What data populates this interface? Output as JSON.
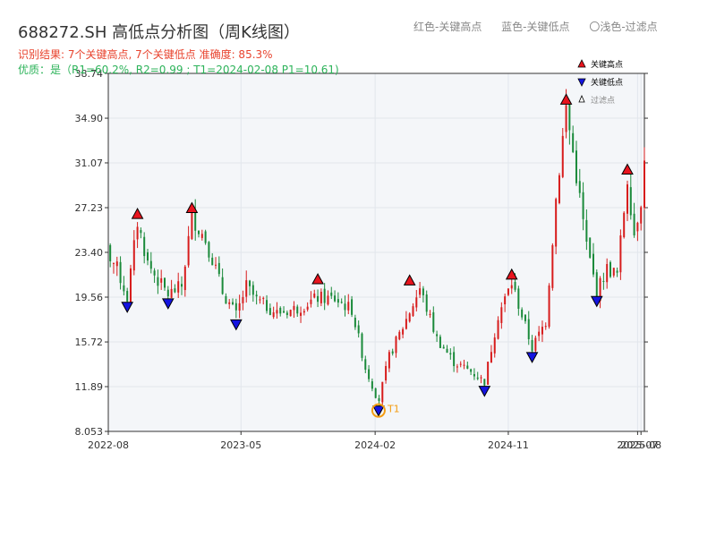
{
  "header": {
    "title": "688272.SH 高低点分析图（周K线图）",
    "result_line": "识别结果: 7个关键高点, 7个关键低点  准确度: 85.3%",
    "quality_line": "优质：是（R1=60.2%, R2=0.99 ; T1=2024-02-08 P1=10.61)"
  },
  "top_legend": {
    "red": "红色-关键高点",
    "blue": "蓝色-关键低点",
    "light": "〇浅色-过滤点"
  },
  "colors": {
    "up": "#d71c1c",
    "down": "#1a8a3a",
    "high_marker": "#e8141e",
    "low_marker": "#1414e0",
    "t1_ring": "#f39c12",
    "plot_bg": "#f4f6f9",
    "grid": "#e2e6ec"
  },
  "chart_data": {
    "type": "candlestick",
    "y_ticks": [
      "8.053",
      "11.89",
      "15.72",
      "19.56",
      "23.40",
      "27.23",
      "31.07",
      "34.90",
      "38.74"
    ],
    "ylim": [
      8.053,
      38.74
    ],
    "x_ticks": [
      "2022-08",
      "2023-05",
      "2024-02",
      "2024-11",
      "2025-07",
      "2025-08"
    ],
    "xlim": [
      "2022-08-01",
      "2025-08-08"
    ],
    "grid": true,
    "legend": {
      "placement": "top-right",
      "items": [
        "关键高点",
        "关键低点",
        "过滤点"
      ]
    },
    "price_path": [
      [
        "2022-07-08",
        29.5
      ],
      [
        "2022-07-22",
        24.0
      ],
      [
        "2022-08-19",
        22.0
      ],
      [
        "2022-09-09",
        19.5
      ],
      [
        "2022-09-30",
        26.0
      ],
      [
        "2022-10-21",
        22.5
      ],
      [
        "2022-11-11",
        21.0
      ],
      [
        "2022-12-02",
        19.8
      ],
      [
        "2022-12-30",
        20.5
      ],
      [
        "2023-01-20",
        26.5
      ],
      [
        "2023-02-17",
        24.5
      ],
      [
        "2023-03-10",
        22.0
      ],
      [
        "2023-03-24",
        20.0
      ],
      [
        "2023-04-21",
        18.0
      ],
      [
        "2023-05-12",
        20.5
      ],
      [
        "2023-06-02",
        19.3
      ],
      [
        "2023-07-14",
        18.2
      ],
      [
        "2023-08-25",
        18.6
      ],
      [
        "2023-10-06",
        19.5
      ],
      [
        "2023-11-10",
        19.4
      ],
      [
        "2023-12-15",
        18.5
      ],
      [
        "2024-01-12",
        13.5
      ],
      [
        "2024-02-08",
        10.61
      ],
      [
        "2024-03-01",
        14.5
      ],
      [
        "2024-03-29",
        17.0
      ],
      [
        "2024-05-03",
        20.3
      ],
      [
        "2024-06-07",
        16.0
      ],
      [
        "2024-07-12",
        14.0
      ],
      [
        "2024-08-16",
        13.2
      ],
      [
        "2024-09-13",
        12.3
      ],
      [
        "2024-10-11",
        18.0
      ],
      [
        "2024-11-08",
        20.8
      ],
      [
        "2024-11-29",
        18.0
      ],
      [
        "2024-12-20",
        15.2
      ],
      [
        "2025-01-17",
        17.5
      ],
      [
        "2025-02-07",
        28.0
      ],
      [
        "2025-02-28",
        35.8
      ],
      [
        "2025-03-21",
        30.0
      ],
      [
        "2025-04-11",
        24.0
      ],
      [
        "2025-05-02",
        20.0
      ],
      [
        "2025-05-23",
        22.0
      ],
      [
        "2025-06-13",
        21.5
      ],
      [
        "2025-07-04",
        29.8
      ],
      [
        "2025-07-18",
        25.0
      ],
      [
        "2025-08-01",
        28.0
      ],
      [
        "2025-08-08",
        31.0
      ]
    ],
    "key_highs": [
      {
        "date": "2022-09-30",
        "price": 26.0
      },
      {
        "date": "2023-01-20",
        "price": 26.5
      },
      {
        "date": "2023-10-06",
        "price": 20.4
      },
      {
        "date": "2024-04-12",
        "price": 20.3
      },
      {
        "date": "2024-11-08",
        "price": 20.8
      },
      {
        "date": "2025-02-28",
        "price": 35.8
      },
      {
        "date": "2025-07-04",
        "price": 29.8
      }
    ],
    "key_lows": [
      {
        "date": "2022-09-09",
        "price": 19.5
      },
      {
        "date": "2022-12-02",
        "price": 19.8
      },
      {
        "date": "2023-04-21",
        "price": 18.0
      },
      {
        "date": "2024-02-08",
        "price": 10.61
      },
      {
        "date": "2024-09-13",
        "price": 12.3
      },
      {
        "date": "2024-12-20",
        "price": 15.2
      },
      {
        "date": "2025-05-02",
        "price": 20.0
      }
    ],
    "annotations": [
      {
        "label": "T1",
        "date": "2024-02-08",
        "price": 10.61
      }
    ]
  }
}
